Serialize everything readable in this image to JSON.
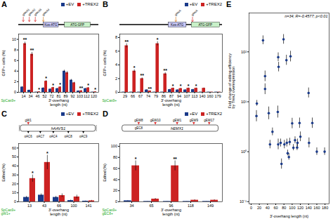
{
  "chart_data": [
    {
      "type": "bar",
      "title": "A",
      "categories": [
        "14",
        "34",
        "46",
        "52",
        "72",
        "81",
        "89",
        "92",
        "103",
        "112",
        "120"
      ],
      "xlabel": "3'-overhang\nlength (nt)",
      "ylabel": "GFP+ cells (%)",
      "ylim": [
        0,
        11
      ],
      "yticks": [
        0,
        2,
        4,
        6,
        8,
        10
      ],
      "legend": "upper right",
      "series": [
        {
          "name": "+EV",
          "color": "#1a3a8a",
          "values": [
            1.0,
            0.4,
            0.05,
            0.8,
            0.6,
            0.7,
            4.0,
            2.3,
            0.25,
            0.7,
            0.05
          ],
          "errors": [
            0.1,
            0.05,
            0.02,
            0.1,
            0.08,
            0.08,
            0.2,
            0.15,
            0.05,
            0.08,
            0.02
          ]
        },
        {
          "name": "+TREX2",
          "color": "#cc2222",
          "values": [
            9.2,
            7.2,
            0.1,
            2.1,
            0.9,
            1.0,
            3.7,
            1.8,
            0.3,
            0.85,
            0.1
          ],
          "errors": [
            0.3,
            0.35,
            0.05,
            0.12,
            0.07,
            0.08,
            0.25,
            0.12,
            0.04,
            0.06,
            0.03
          ],
          "significance": [
            "**",
            "**",
            "*",
            "*",
            "*",
            "*",
            null,
            null,
            "**",
            "*",
            "*"
          ]
        }
      ],
      "annotations": [
        {
          "text": "SpCas9+",
          "color": "#22aa22"
        }
      ],
      "schematic": [
        {
          "text": "Kos-ATG",
          "color": "#c8c8f8"
        },
        {
          "text": "ATG-GFP",
          "color": "#c8f0c8"
        },
        {
          "text": "gRNA1",
          "color": "#dd3333"
        },
        {
          "text": "gRNA2",
          "color": "#dd3333"
        },
        {
          "text": "gRNA3",
          "color": "#dd3333"
        },
        {
          "text": "gRNA4",
          "color": "#dd8833"
        }
      ]
    },
    {
      "type": "bar",
      "title": "B",
      "categories": [
        "29",
        "66",
        "67",
        "74",
        "79",
        "86",
        "87",
        "94",
        "107",
        "113",
        "140",
        "160",
        "179"
      ],
      "xlabel": "3'-overhang\nlength (nt)",
      "ylabel": "GFP+ cells (%)",
      "ylim": [
        0,
        8.5
      ],
      "yticks": [
        0,
        2,
        4,
        6,
        8
      ],
      "legend": "upper right",
      "series": [
        {
          "name": "+EV",
          "color": "#1a3a8a",
          "values": [
            0.04,
            0.04,
            0.04,
            0.35,
            0.04,
            0.04,
            0.4,
            0.35,
            0.35,
            0.4,
            0.04,
            0.04,
            0.04
          ],
          "errors": [
            0.01,
            0.01,
            0.01,
            0.05,
            0.01,
            0.01,
            0.05,
            0.05,
            0.05,
            0.05,
            0.01,
            0.01,
            0.01
          ]
        },
        {
          "name": "+TREX2",
          "color": "#cc2222",
          "values": [
            6.8,
            3.1,
            2.0,
            0.2,
            7.1,
            2.7,
            0.6,
            0.55,
            0.6,
            0.6,
            0.6,
            0.04,
            0.04
          ],
          "errors": [
            0.3,
            0.2,
            0.12,
            0.03,
            0.3,
            0.18,
            0.05,
            0.05,
            0.05,
            0.05,
            0.05,
            0.01,
            0.01
          ],
          "significance": [
            "**",
            "*",
            "**",
            "**",
            "*",
            "**",
            "*",
            "*",
            "*",
            "*",
            null,
            null,
            null
          ]
        }
      ],
      "annotations": [
        {
          "text": "SpCas9+",
          "color": "#22aa22"
        }
      ],
      "schematic": [
        {
          "text": "Kos-ATG",
          "color": "#c8c8f8"
        },
        {
          "text": "ATG-GFP",
          "color": "#c8f0c8"
        },
        {
          "text": "gRNA",
          "color": "#dd8833"
        },
        {
          "text": "gRNA",
          "color": "#dd3333"
        }
      ]
    },
    {
      "type": "bar",
      "title": "C",
      "categories": [
        "13",
        "43",
        "66",
        "100",
        "141"
      ],
      "xlabel": "3'-overhang\nlength (nt)",
      "ylabel": "Edited (%)",
      "ylim": [
        0,
        65
      ],
      "yticks": [
        0,
        10,
        20,
        30,
        40,
        50,
        60
      ],
      "legend": "upper right",
      "series": [
        {
          "name": "+EV",
          "color": "#1a3a8a",
          "values": [
            5.0,
            7.5,
            5.0,
            1.5,
            0.8
          ],
          "errors": [
            1.2,
            1.5,
            1.2,
            0.5,
            0.2
          ]
        },
        {
          "name": "+TREX2",
          "color": "#cc2222",
          "values": [
            26.0,
            44.0,
            7.0,
            5.5,
            1.2
          ],
          "errors": [
            4.0,
            8.0,
            2.0,
            2.0,
            0.5
          ],
          "significance": [
            "*",
            "*",
            null,
            null,
            null
          ]
        }
      ],
      "annotations": [
        {
          "text": "SpCas9+\ngW1+",
          "color": "#22aa22"
        }
      ],
      "schematic": [
        {
          "text": "hAAVS1"
        },
        {
          "text": "gW1",
          "color": "#dd3333"
        },
        {
          "text": "gAC6"
        },
        {
          "text": "gAC7"
        },
        {
          "text": "gAC4"
        },
        {
          "text": "gAC8"
        },
        {
          "text": "gAC9"
        }
      ]
    },
    {
      "type": "bar",
      "title": "D",
      "categories": [
        "34",
        "65",
        "96",
        "118",
        "149"
      ],
      "xlabel": "3'-overhang\nlength (nt)",
      "ylabel": "Edited (%)",
      "ylim": [
        0,
        105
      ],
      "yticks": [
        0,
        20,
        40,
        60,
        80,
        100
      ],
      "legend": "upper right",
      "series": [
        {
          "name": "+EV",
          "color": "#1a3a8a",
          "values": [
            2.0,
            0.8,
            0.8,
            0.8,
            0.8
          ],
          "errors": [
            0.4,
            0.15,
            0.15,
            0.15,
            0.15
          ]
        },
        {
          "name": "+TREX2",
          "color": "#cc2222",
          "values": [
            65.0,
            5.0,
            65.0,
            3.0,
            3.0
          ],
          "errors": [
            9.0,
            1.2,
            9.0,
            0.8,
            0.8
          ],
          "significance": [
            "*",
            null,
            "**",
            null,
            null
          ]
        }
      ],
      "annotations": [
        {
          "text": "SpCas9+\ngEC8+",
          "color": "#22aa22"
        }
      ],
      "schematic": [
        {
          "text": "hEMX1"
        },
        {
          "text": "gEC8"
        },
        {
          "text": "gEW8",
          "color": "#dd3333"
        },
        {
          "text": "gEW10",
          "color": "#dd3333"
        },
        {
          "text": "gEW1",
          "color": "#dd3333"
        },
        {
          "text": "gEW9",
          "color": "#dd3333"
        },
        {
          "text": "gEW17",
          "color": "#dd3333"
        }
      ]
    },
    {
      "type": "scatter",
      "title": "E",
      "xlabel": "3'-overhang length (nt)",
      "ylabel": "Fold change of editing efficiency\nby Trex2 overexpression",
      "annotations": [
        {
          "text": "n=34; R=-0.4577; p<0.01"
        }
      ],
      "log": "y",
      "xlim": [
        -5,
        190
      ],
      "xticks": [
        0,
        20,
        40,
        60,
        80,
        100,
        120,
        140,
        160,
        180
      ],
      "ylim": [
        0.09,
        600
      ],
      "yticks": [
        {
          "value": 0.1,
          "label": "10⁻¹"
        },
        {
          "value": 1,
          "label": "10⁰"
        },
        {
          "value": 10,
          "label": "10¹"
        },
        {
          "value": 100,
          "label": "10²"
        }
      ],
      "color": "#1a3a8a",
      "x": [
        14,
        29,
        34,
        46,
        52,
        66,
        67,
        72,
        74,
        79,
        81,
        86,
        87,
        89,
        92,
        94,
        103,
        107,
        112,
        113,
        120,
        140,
        160,
        179,
        13,
        43,
        66,
        100,
        141,
        34,
        65,
        96,
        118,
        149
      ],
      "values": [
        9.2,
        170,
        18,
        1.4,
        2.5,
        78,
        50,
        1.5,
        0.57,
        178,
        1.4,
        68,
        1.5,
        0.93,
        0.78,
        1.57,
        1.2,
        1.7,
        1.21,
        1.5,
        2.0,
        15,
        1.0,
        1.0,
        5.2,
        5.9,
        1.4,
        3.7,
        1.5,
        32.5,
        6.25,
        81.3,
        3.75,
        3.75
      ],
      "yerr_high": [
        1.5,
        40,
        5,
        0.3,
        0.5,
        18,
        12,
        0.3,
        0.15,
        45,
        0.3,
        18,
        0.3,
        0.15,
        0.15,
        0.3,
        0.2,
        0.3,
        0.2,
        0.3,
        0.5,
        4,
        0.2,
        0.2,
        1.5,
        2.0,
        0.4,
        1.0,
        0.4,
        9.0,
        2.0,
        22,
        1.0,
        1.0
      ],
      "yerr_low": [
        1.0,
        30,
        4,
        0.25,
        0.4,
        14,
        10,
        0.25,
        0.12,
        35,
        0.25,
        14,
        0.25,
        0.1,
        0.1,
        0.25,
        0.15,
        0.25,
        0.15,
        0.25,
        0.4,
        3,
        0.15,
        0.15,
        1.2,
        1.5,
        0.3,
        0.8,
        0.3,
        7.0,
        1.5,
        18,
        0.8,
        0.8
      ]
    }
  ]
}
